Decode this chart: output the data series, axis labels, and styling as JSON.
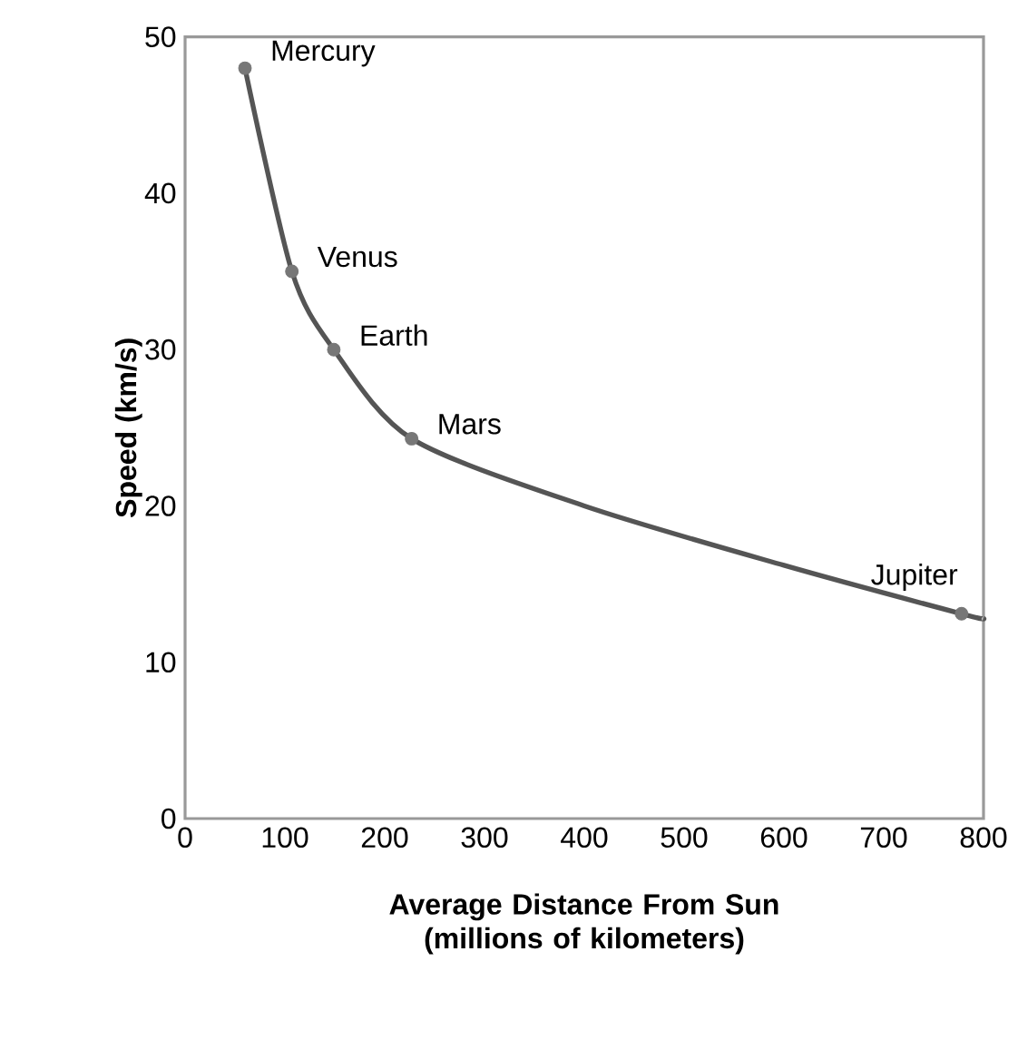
{
  "chart_data": {
    "type": "line",
    "xlabel": "Average Distance From Sun (millions of kilometers)",
    "ylabel": "Speed (km/s)",
    "xlim": [
      0,
      800
    ],
    "ylim": [
      0,
      50
    ],
    "xticks": [
      0,
      100,
      200,
      300,
      400,
      500,
      600,
      700,
      800
    ],
    "yticks": [
      0,
      10,
      20,
      30,
      40,
      50
    ],
    "series": [
      {
        "color": "#555555",
        "marker": "none",
        "x": [
          60,
          107,
          149,
          227,
          400,
          600,
          778,
          800
        ],
        "values": [
          48,
          35,
          30,
          24.3,
          20,
          16.2,
          13.1,
          12.8
        ]
      },
      {
        "type": "scatter",
        "color": "#777777",
        "marker": "circle",
        "x": [
          60,
          107,
          149,
          227,
          778
        ],
        "values": [
          48,
          35,
          30,
          24.3,
          13.1
        ]
      }
    ],
    "annotations": [
      {
        "text": "Mercury",
        "x": 60,
        "y": 48
      },
      {
        "text": "Venus",
        "x": 107,
        "y": 35
      },
      {
        "text": "Earth",
        "x": 149,
        "y": 30
      },
      {
        "text": "Mars",
        "x": 227,
        "y": 24.3
      },
      {
        "text": "Jupiter",
        "x": 778,
        "y": 13.1
      }
    ]
  }
}
